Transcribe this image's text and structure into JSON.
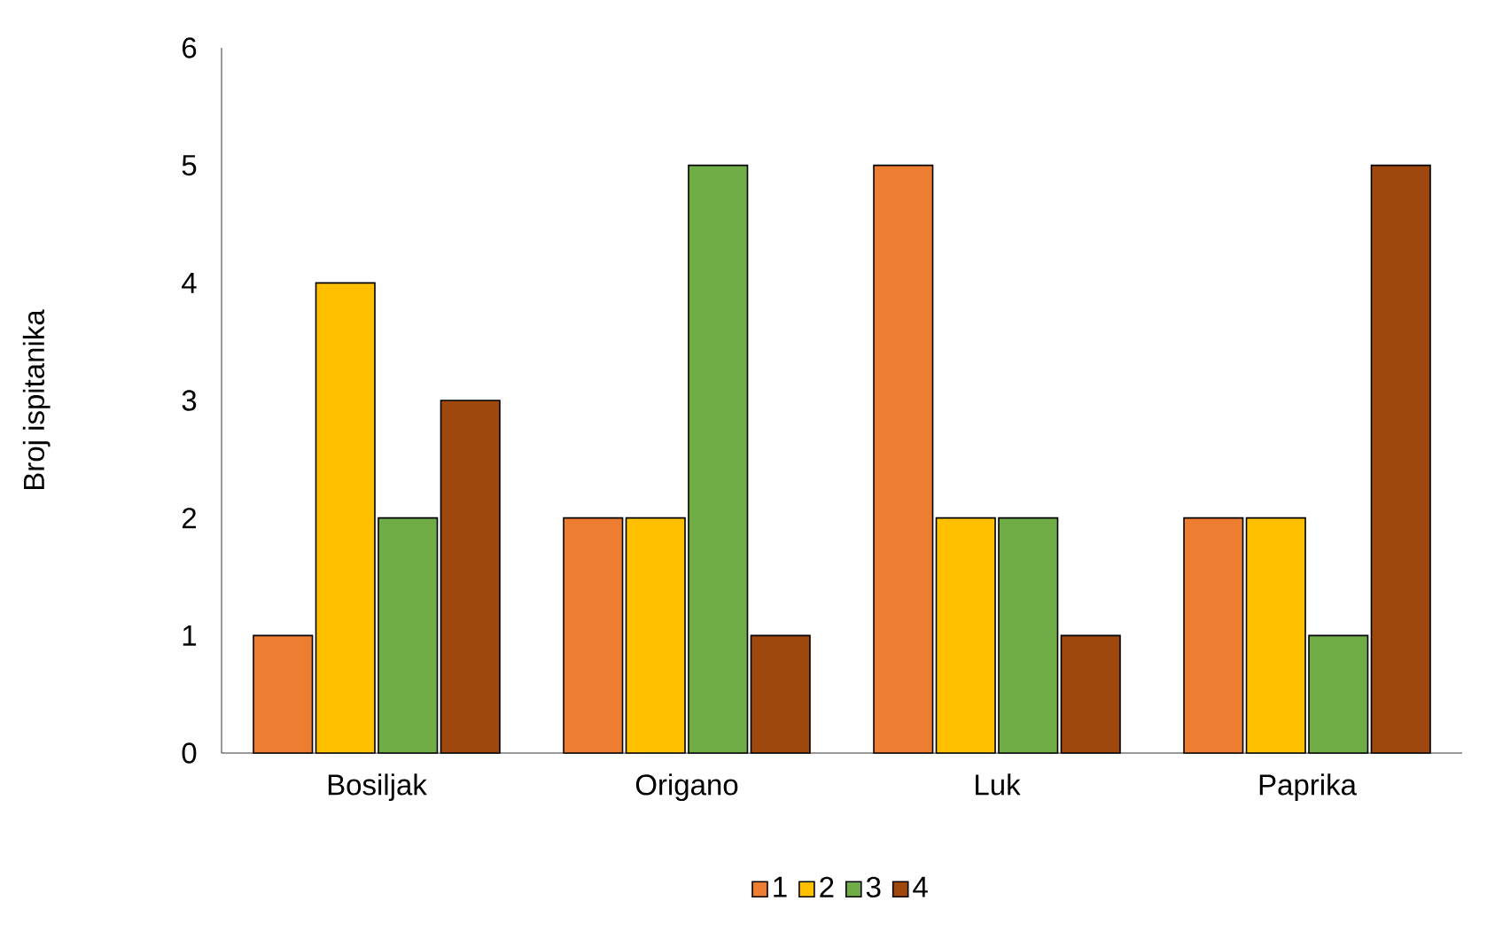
{
  "chart_data": {
    "type": "bar",
    "ylabel": "Broj ispitanika",
    "categories": [
      "Bosiljak",
      "Origano",
      "Luk",
      "Paprika"
    ],
    "series": [
      {
        "name": "1",
        "color": "#ed7d31",
        "values": [
          1,
          2,
          5,
          2
        ]
      },
      {
        "name": "2",
        "color": "#ffc000",
        "values": [
          4,
          2,
          2,
          2
        ]
      },
      {
        "name": "3",
        "color": "#70ad47",
        "values": [
          2,
          5,
          2,
          1
        ]
      },
      {
        "name": "4",
        "color": "#9e480e",
        "values": [
          3,
          1,
          1,
          5
        ]
      }
    ],
    "ylim": [
      0,
      6
    ],
    "yticks": [
      0,
      1,
      2,
      3,
      4,
      5,
      6
    ],
    "legend": "bottom"
  }
}
